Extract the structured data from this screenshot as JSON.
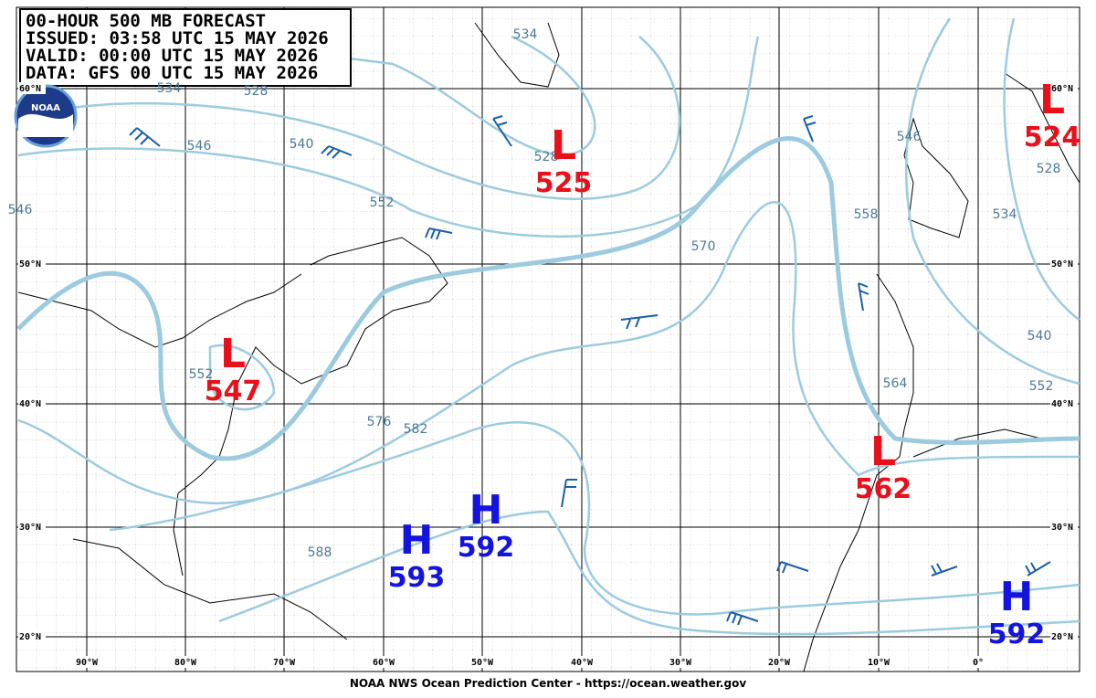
{
  "header": {
    "lines": [
      "00-HOUR 500 MB FORECAST",
      "ISSUED: 03:58 UTC 15 MAY 2026",
      "VALID:  00:00 UTC 15 MAY 2026",
      "DATA:  GFS 00 UTC 15 MAY 2026"
    ]
  },
  "logo": "NOAA",
  "centers": [
    {
      "symbol": "L",
      "value": 525
    },
    {
      "symbol": "L",
      "value": 524
    },
    {
      "symbol": "L",
      "value": 547
    },
    {
      "symbol": "L",
      "value": 562
    },
    {
      "symbol": "H",
      "value": 593
    },
    {
      "symbol": "H",
      "value": 592
    },
    {
      "symbol": "H",
      "value": 592
    }
  ],
  "contour_labels": [
    534,
    534,
    528,
    546,
    540,
    552,
    528,
    570,
    546,
    552,
    576,
    582,
    588,
    558,
    564,
    540,
    552,
    534,
    528,
    546
  ],
  "lat_labels": [
    "60°N",
    "50°N",
    "40°N",
    "30°N",
    "20°N"
  ],
  "lon_labels": [
    "90°W",
    "80°W",
    "70°W",
    "60°W",
    "50°W",
    "40°W",
    "30°W",
    "20°W",
    "10°W",
    "0°"
  ],
  "footer": "NOAA NWS Ocean Prediction Center - https://ocean.weather.gov"
}
